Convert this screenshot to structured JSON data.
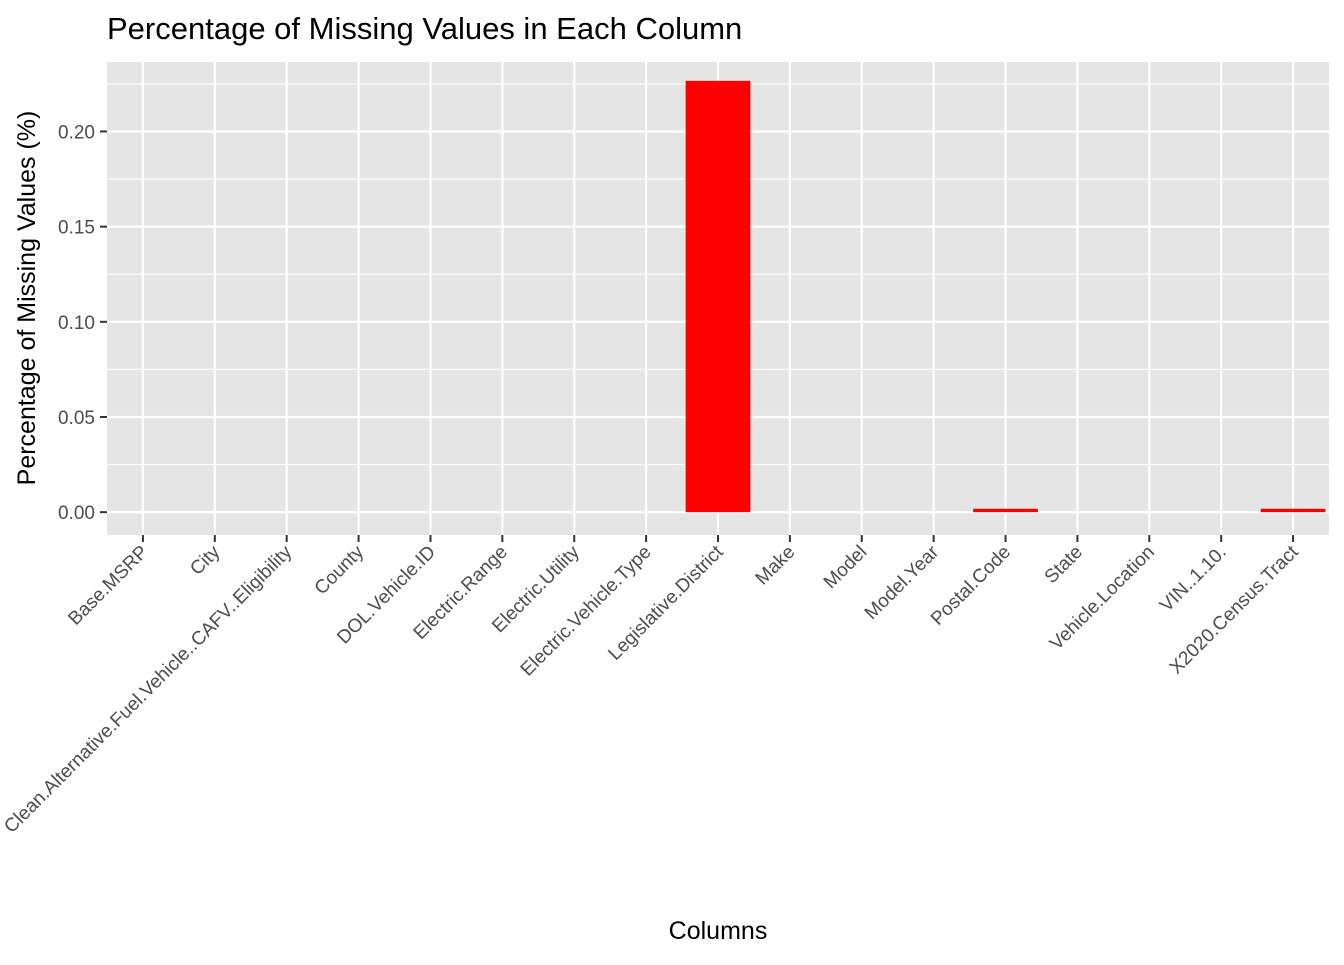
{
  "colors": {
    "panel_background": "#E5E5E5",
    "grid_line": "#FFFFFF",
    "bar_fill": "#FF0000",
    "axis_text": "#4D4D4D",
    "title_text": "#000000"
  },
  "chart_data": {
    "type": "bar",
    "title": "Percentage of Missing Values in Each Column",
    "xlabel": "Columns",
    "ylabel": "Percentage of Missing Values (%)",
    "ylim": [
      -0.012,
      0.2365
    ],
    "y_ticks": [
      0.0,
      0.05,
      0.1,
      0.15,
      0.2
    ],
    "y_tick_labels": [
      "0.00",
      "0.05",
      "0.10",
      "0.15",
      "0.20"
    ],
    "grid": true,
    "categories": [
      "Base.MSRP",
      "City",
      "Clean.Alternative.Fuel.Vehicle..CAFV..Eligibility",
      "County",
      "DOL.Vehicle.ID",
      "Electric.Range",
      "Electric.Utility",
      "Electric.Vehicle.Type",
      "Legislative.District",
      "Make",
      "Model",
      "Model.Year",
      "Postal.Code",
      "State",
      "Vehicle.Location",
      "VIN..1.10.",
      "X2020.Census.Tract"
    ],
    "values": [
      0,
      0,
      0,
      0,
      0,
      0,
      0,
      0,
      0.2266,
      0,
      0,
      0,
      0.0018,
      0,
      0,
      0,
      0.0018
    ]
  }
}
